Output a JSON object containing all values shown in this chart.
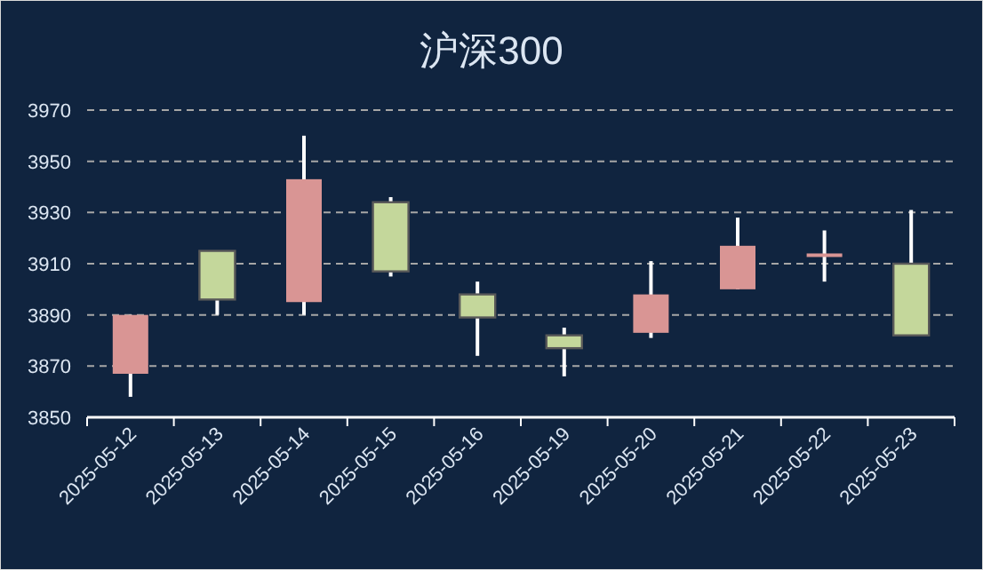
{
  "chart_data": {
    "type": "candlestick",
    "title": "沪深300",
    "categories": [
      "2025-05-12",
      "2025-05-13",
      "2025-05-14",
      "2025-05-15",
      "2025-05-16",
      "2025-05-19",
      "2025-05-20",
      "2025-05-21",
      "2025-05-22",
      "2025-05-23"
    ],
    "ohlc": [
      [
        3867,
        3890,
        3858,
        3890
      ],
      [
        3915,
        3915,
        3890,
        3896
      ],
      [
        3895,
        3960,
        3890,
        3943
      ],
      [
        3934,
        3936,
        3905,
        3907
      ],
      [
        3898,
        3903,
        3874,
        3889
      ],
      [
        3882,
        3885,
        3866,
        3877
      ],
      [
        3883,
        3911,
        3881,
        3898
      ],
      [
        3900,
        3928,
        3900,
        3917
      ],
      [
        3913,
        3923,
        3903,
        3914
      ],
      [
        3910,
        3931,
        3882,
        3882
      ]
    ],
    "colors": [
      "#d99594",
      "#c4d79b",
      "#d99594",
      "#c4d79b",
      "#c4d79b",
      "#c4d79b",
      "#d99594",
      "#d99594",
      "#d99594",
      "#c4d79b"
    ],
    "ylim": [
      3850,
      3970
    ],
    "yticks": [
      3850,
      3870,
      3890,
      3910,
      3930,
      3950,
      3970
    ],
    "grid": "y"
  }
}
